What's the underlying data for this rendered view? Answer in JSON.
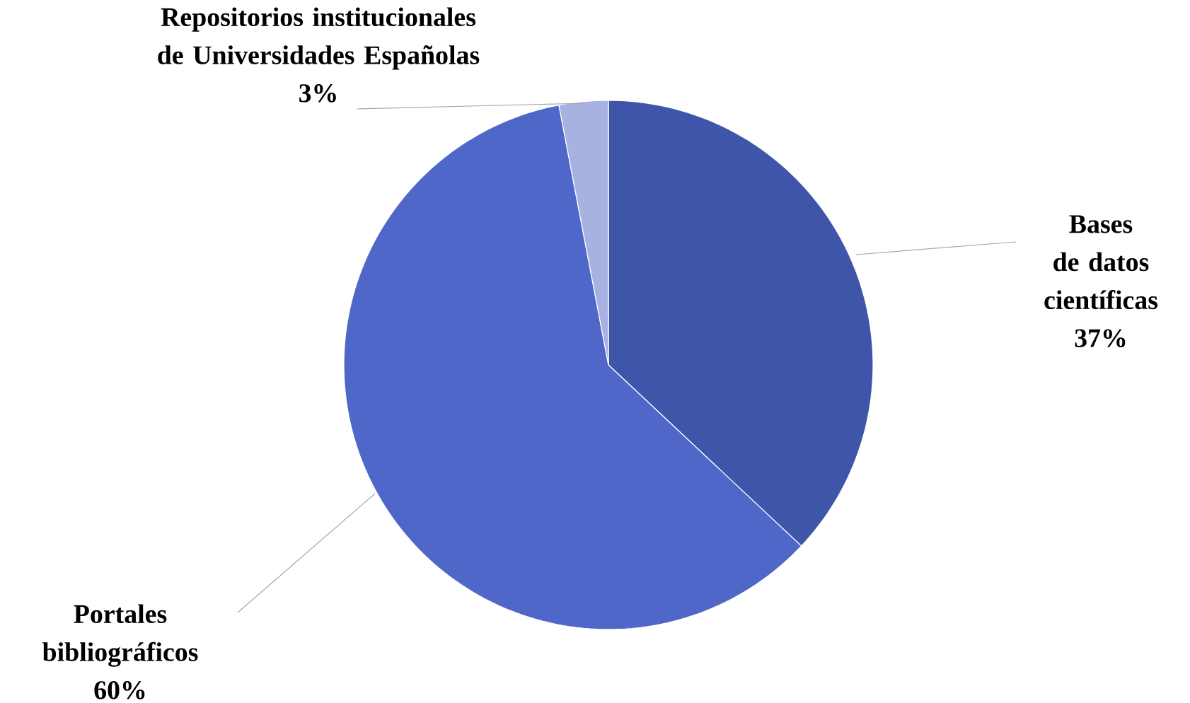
{
  "chart_data": {
    "type": "pie",
    "categories": [
      "Bases de datos científicas",
      "Portales bibliográficos",
      "Repositorios institucionales de Universidades Españolas"
    ],
    "values": [
      37,
      60,
      3
    ],
    "value_labels": [
      "37%",
      "60%",
      "3%"
    ],
    "colors": [
      "#3f55a9",
      "#4e67c8",
      "#a8b2e0"
    ]
  }
}
